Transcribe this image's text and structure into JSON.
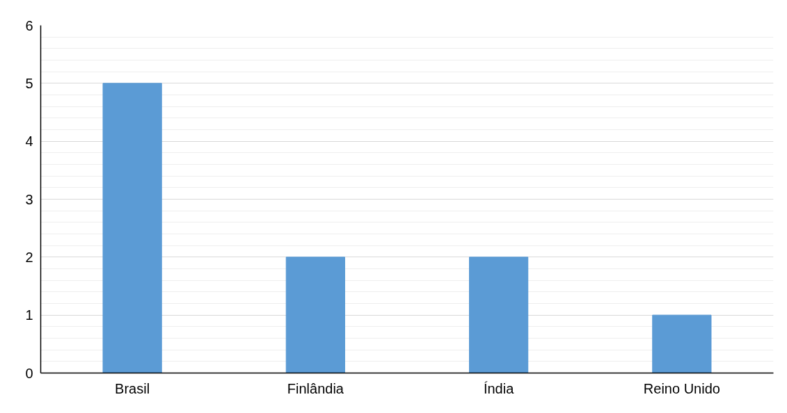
{
  "chart_data": {
    "type": "bar",
    "categories": [
      "Brasil",
      "Finlândia",
      "Índia",
      "Reino Unido"
    ],
    "values": [
      5,
      2,
      2,
      1
    ],
    "color": "#5b9bd5",
    "ylim": [
      0,
      6
    ],
    "yticks": [
      0,
      1,
      2,
      3,
      4,
      5,
      6
    ],
    "grid": "y"
  }
}
